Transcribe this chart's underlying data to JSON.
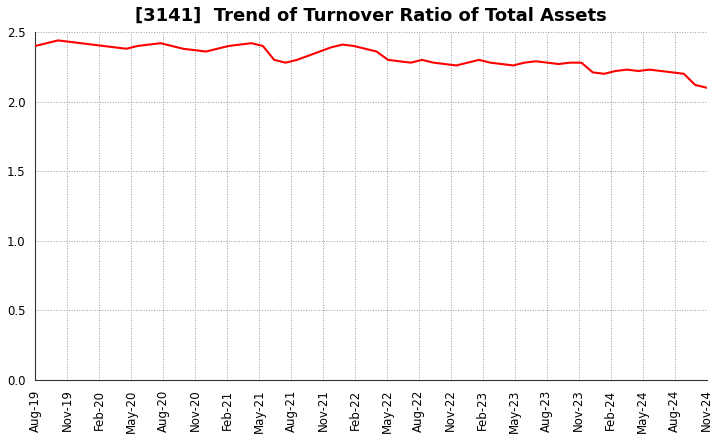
{
  "title": "[3141]  Trend of Turnover Ratio of Total Assets",
  "line_color": "#FF0000",
  "line_width": 1.5,
  "background_color": "#FFFFFF",
  "grid_color": "#999999",
  "ylim": [
    0.0,
    2.5
  ],
  "yticks": [
    0.0,
    0.5,
    1.0,
    1.5,
    2.0,
    2.5
  ],
  "x_labels": [
    "Aug-19",
    "Nov-19",
    "Feb-20",
    "May-20",
    "Aug-20",
    "Nov-20",
    "Feb-21",
    "May-21",
    "Aug-21",
    "Nov-21",
    "Feb-22",
    "May-22",
    "Aug-22",
    "Nov-22",
    "Feb-23",
    "May-23",
    "Aug-23",
    "Nov-23",
    "Feb-24",
    "May-24",
    "Aug-24",
    "Nov-24"
  ],
  "values": [
    2.4,
    2.42,
    2.44,
    2.43,
    2.42,
    2.41,
    2.4,
    2.39,
    2.38,
    2.4,
    2.41,
    2.42,
    2.4,
    2.38,
    2.37,
    2.36,
    2.38,
    2.4,
    2.41,
    2.42,
    2.4,
    2.3,
    2.28,
    2.3,
    2.33,
    2.36,
    2.39,
    2.41,
    2.4,
    2.38,
    2.36,
    2.3,
    2.29,
    2.28,
    2.3,
    2.28,
    2.27,
    2.26,
    2.28,
    2.3,
    2.28,
    2.27,
    2.26,
    2.28,
    2.29,
    2.28,
    2.27,
    2.28,
    2.28,
    2.21,
    2.2,
    2.22,
    2.23,
    2.22,
    2.23,
    2.22,
    2.21,
    2.2,
    2.12,
    2.1
  ],
  "n_ticks": 22,
  "title_fontsize": 13,
  "tick_fontsize": 8.5
}
